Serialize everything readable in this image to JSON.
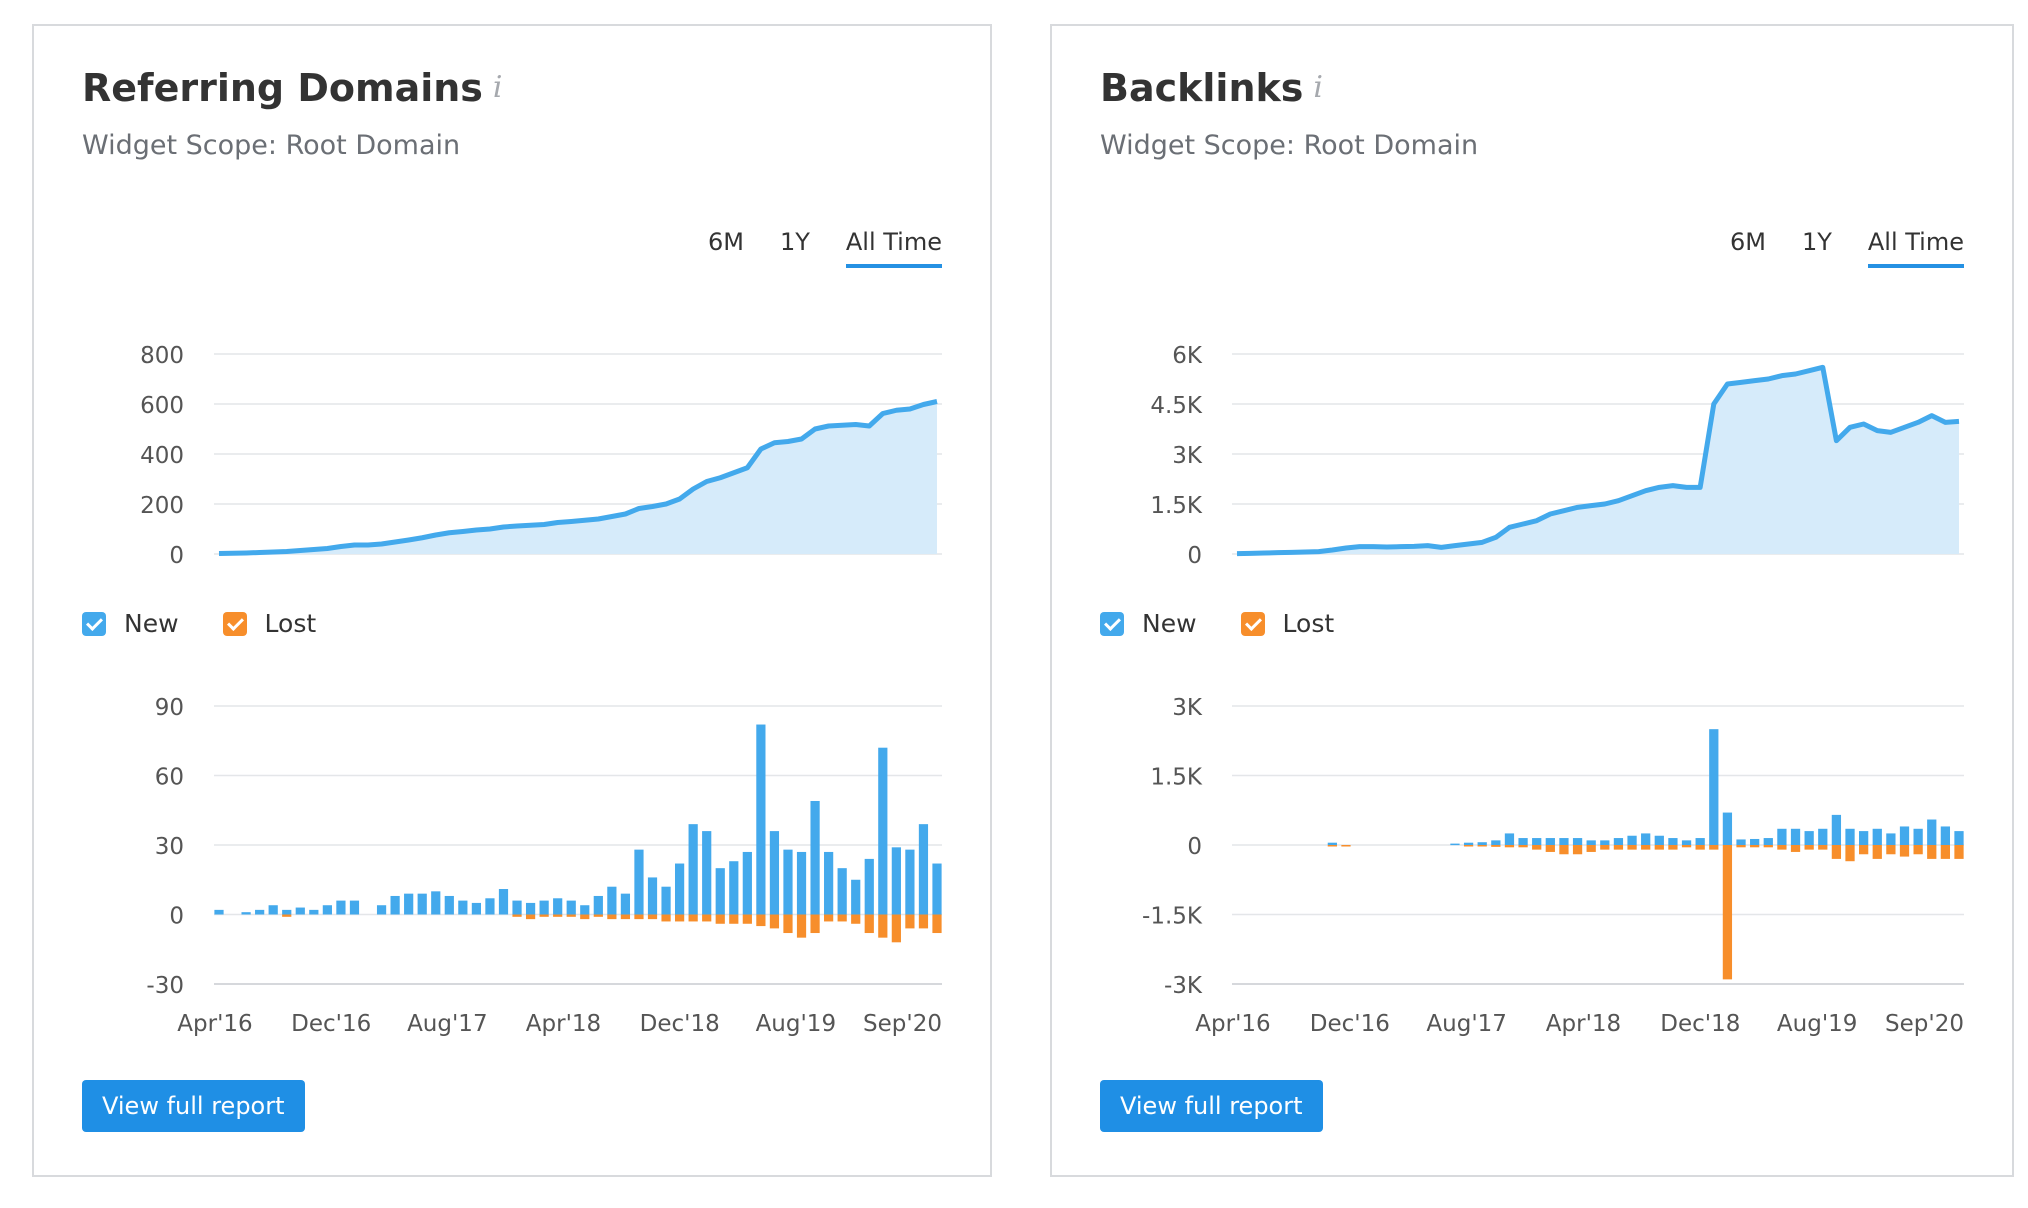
{
  "periods": [
    "6M",
    "1Y",
    "All Time"
  ],
  "active_period": "All Time",
  "legend": {
    "new_label": "New",
    "lost_label": "Lost"
  },
  "colors": {
    "new": "#43a9ec",
    "lost": "#f78e2b",
    "area": "#d6ebfa",
    "line": "#43a9ec",
    "grid": "#e4e6e9",
    "button": "#1f8fe5"
  },
  "widgets": [
    {
      "title": "Referring Domains",
      "subtitle": "Widget Scope: Root Domain",
      "button_label": "View full report",
      "chart_data": {
        "trend": {
          "type": "area",
          "y_ticks": [
            "800",
            "600",
            "400",
            "200",
            "0"
          ],
          "ylim": [
            0,
            800
          ],
          "values": [
            2,
            3,
            4,
            6,
            8,
            10,
            14,
            18,
            22,
            30,
            36,
            36,
            40,
            48,
            56,
            65,
            76,
            85,
            90,
            96,
            100,
            108,
            112,
            115,
            118,
            126,
            130,
            135,
            140,
            150,
            160,
            182,
            190,
            200,
            220,
            260,
            290,
            305,
            325,
            345,
            420,
            445,
            450,
            460,
            500,
            512,
            515,
            518,
            512,
            562,
            575,
            580,
            598,
            610
          ]
        },
        "flow": {
          "type": "bar",
          "y_ticks": [
            "90",
            "60",
            "30",
            "0",
            "-30"
          ],
          "ylim": [
            -30,
            90
          ],
          "x_ticks": [
            "Apr'16",
            "Dec'16",
            "Aug'17",
            "Apr'18",
            "Dec'18",
            "Aug'19",
            "Sep'20"
          ],
          "series": [
            {
              "name": "New",
              "values": [
                2,
                0,
                1,
                2,
                4,
                2,
                3,
                2,
                4,
                6,
                6,
                0,
                4,
                8,
                9,
                9,
                10,
                8,
                6,
                5,
                7,
                11,
                6,
                5,
                6,
                7,
                6,
                4,
                8,
                12,
                9,
                28,
                16,
                12,
                22,
                39,
                36,
                20,
                23,
                27,
                82,
                36,
                28,
                27,
                49,
                27,
                20,
                15,
                24,
                72,
                29,
                28,
                39,
                22
              ]
            },
            {
              "name": "Lost",
              "values": [
                0,
                0,
                0,
                0,
                0,
                -1,
                0,
                0,
                0,
                0,
                0,
                0,
                0,
                0,
                0,
                0,
                0,
                0,
                0,
                0,
                0,
                0,
                -1,
                -2,
                -1,
                -1,
                -1,
                -2,
                -1,
                -2,
                -2,
                -2,
                -2,
                -3,
                -3,
                -3,
                -3,
                -4,
                -4,
                -4,
                -5,
                -6,
                -8,
                -10,
                -8,
                -3,
                -3,
                -4,
                -8,
                -10,
                -12,
                -6,
                -6,
                -8
              ]
            }
          ]
        }
      }
    },
    {
      "title": "Backlinks",
      "subtitle": "Widget Scope: Root Domain",
      "button_label": "View full report",
      "chart_data": {
        "trend": {
          "type": "area",
          "y_ticks": [
            "6K",
            "4.5K",
            "3K",
            "1.5K",
            "0"
          ],
          "ylim": [
            0,
            6000
          ],
          "values": [
            10,
            20,
            30,
            40,
            50,
            60,
            70,
            120,
            180,
            220,
            220,
            210,
            220,
            230,
            250,
            200,
            250,
            300,
            350,
            500,
            800,
            900,
            1000,
            1200,
            1300,
            1400,
            1450,
            1500,
            1600,
            1750,
            1900,
            2000,
            2050,
            2000,
            2000,
            4500,
            5100,
            5150,
            5200,
            5250,
            5350,
            5400,
            5500,
            5600,
            3400,
            3800,
            3900,
            3700,
            3650,
            3800,
            3950,
            4150,
            3950,
            3980
          ]
        },
        "flow": {
          "type": "bar",
          "y_ticks": [
            "3K",
            "1.5K",
            "0",
            "-1.5K",
            "-3K"
          ],
          "ylim": [
            -3000,
            3000
          ],
          "x_ticks": [
            "Apr'16",
            "Dec'16",
            "Aug'17",
            "Apr'18",
            "Dec'18",
            "Aug'19",
            "Sep'20"
          ],
          "series": [
            {
              "name": "New",
              "values": [
                0,
                0,
                0,
                0,
                0,
                0,
                0,
                50,
                0,
                0,
                0,
                0,
                0,
                0,
                0,
                0,
                30,
                50,
                60,
                100,
                250,
                150,
                150,
                150,
                150,
                150,
                100,
                100,
                150,
                200,
                250,
                200,
                150,
                100,
                150,
                2500,
                700,
                120,
                130,
                150,
                350,
                350,
                300,
                350,
                650,
                350,
                300,
                350,
                250,
                400,
                350,
                550,
                400,
                300
              ]
            },
            {
              "name": "Lost",
              "values": [
                0,
                0,
                0,
                0,
                0,
                0,
                0,
                -20,
                -30,
                0,
                0,
                0,
                0,
                0,
                0,
                0,
                0,
                -20,
                -30,
                -40,
                -50,
                -50,
                -100,
                -150,
                -200,
                -200,
                -150,
                -100,
                -100,
                -100,
                -100,
                -100,
                -100,
                -50,
                -100,
                -100,
                -2900,
                -50,
                -50,
                -50,
                -100,
                -150,
                -100,
                -100,
                -300,
                -350,
                -200,
                -300,
                -200,
                -250,
                -200,
                -300,
                -300,
                -300
              ]
            }
          ]
        }
      }
    }
  ]
}
